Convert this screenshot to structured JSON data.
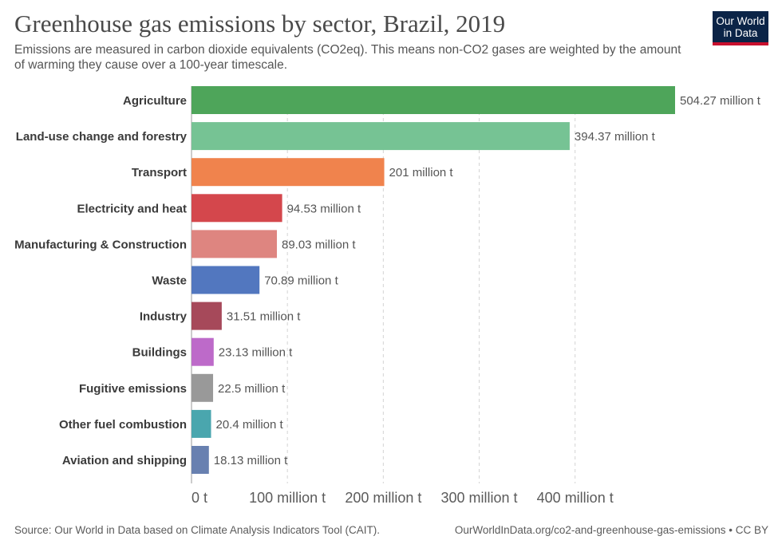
{
  "title": "Greenhouse gas emissions by sector, Brazil, 2019",
  "subtitle": "Emissions are measured in carbon dioxide equivalents (CO2eq). This means non-CO2 gases are weighted by the amount of warming they cause over a 100-year timescale.",
  "logo": {
    "line1": "Our World",
    "line2": "in Data",
    "bg_color": "#0b2447",
    "accent_color": "#c8102e"
  },
  "footer": {
    "source": "Source: Our World in Data based on Climate Analysis Indicators Tool (CAIT).",
    "url_license": "OurWorldInData.org/co2-and-greenhouse-gas-emissions • CC BY"
  },
  "chart_data": {
    "type": "bar",
    "orientation": "horizontal",
    "unit": "million t",
    "xlim": [
      0,
      504.27
    ],
    "x_ticks": [
      0,
      100,
      200,
      300,
      400
    ],
    "x_tick_labels": [
      "0 t",
      "100 million t",
      "200 million t",
      "300 million t",
      "400 million t"
    ],
    "grid": "vertical dashed",
    "categories": [
      "Agriculture",
      "Land-use change and forestry",
      "Transport",
      "Electricity and heat",
      "Manufacturing & Construction",
      "Waste",
      "Industry",
      "Buildings",
      "Fugitive emissions",
      "Other fuel combustion",
      "Aviation and shipping"
    ],
    "values": [
      504.27,
      394.37,
      201,
      94.53,
      89.03,
      70.89,
      31.51,
      23.13,
      22.5,
      20.4,
      18.13
    ],
    "value_labels": [
      "504.27 million t",
      "394.37 million t",
      "201 million t",
      "94.53 million t",
      "89.03 million t",
      "70.89 million t",
      "31.51 million t",
      "23.13 million t",
      "22.5 million t",
      "20.4 million t",
      "18.13 million t"
    ],
    "colors": [
      "#4ea55a",
      "#76c394",
      "#f0834d",
      "#d4474c",
      "#de8580",
      "#5277bf",
      "#a6495a",
      "#bd6ac9",
      "#999999",
      "#4aa6ae",
      "#6880b0"
    ]
  }
}
